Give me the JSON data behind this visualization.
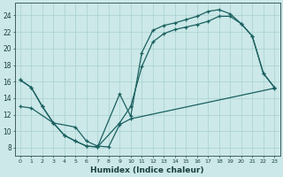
{
  "xlabel": "Humidex (Indice chaleur)",
  "background_color": "#cce8e8",
  "grid_color": "#a8d0d0",
  "line_color": "#1a6060",
  "xlim": [
    -0.5,
    23.5
  ],
  "ylim": [
    7,
    25.5
  ],
  "xticks": [
    0,
    1,
    2,
    3,
    4,
    5,
    6,
    7,
    8,
    9,
    10,
    11,
    12,
    13,
    14,
    15,
    16,
    17,
    18,
    19,
    20,
    21,
    22,
    23
  ],
  "yticks": [
    8,
    10,
    12,
    14,
    16,
    18,
    20,
    22,
    24
  ],
  "curve_top_x": [
    0,
    1,
    2,
    3,
    4,
    5,
    6,
    7,
    9,
    10,
    11,
    12,
    13,
    14,
    15,
    16,
    17,
    18,
    19,
    20,
    21,
    22,
    23
  ],
  "curve_top_y": [
    16.2,
    15.3,
    13.0,
    11.0,
    9.5,
    8.8,
    8.2,
    8.1,
    14.5,
    11.8,
    19.5,
    22.2,
    22.8,
    23.1,
    23.5,
    23.9,
    24.5,
    24.7,
    24.2,
    23.0,
    21.5,
    17.0,
    15.3
  ],
  "curve_mid_x": [
    0,
    1,
    2,
    3,
    4,
    5,
    6,
    7,
    9,
    10,
    11,
    12,
    13,
    14,
    15,
    16,
    17,
    18,
    19,
    20,
    21,
    22,
    23
  ],
  "curve_mid_y": [
    16.2,
    15.3,
    13.0,
    11.0,
    9.5,
    8.8,
    8.2,
    8.1,
    11.0,
    13.0,
    17.8,
    20.8,
    21.8,
    22.3,
    22.6,
    22.9,
    23.3,
    23.9,
    23.9,
    23.0,
    21.5,
    17.0,
    15.3
  ],
  "curve_bot_x": [
    0,
    1,
    3,
    5,
    6,
    7,
    8,
    9,
    10,
    23
  ],
  "curve_bot_y": [
    13.0,
    12.8,
    11.0,
    10.5,
    8.8,
    8.2,
    8.1,
    10.8,
    11.5,
    15.2
  ]
}
